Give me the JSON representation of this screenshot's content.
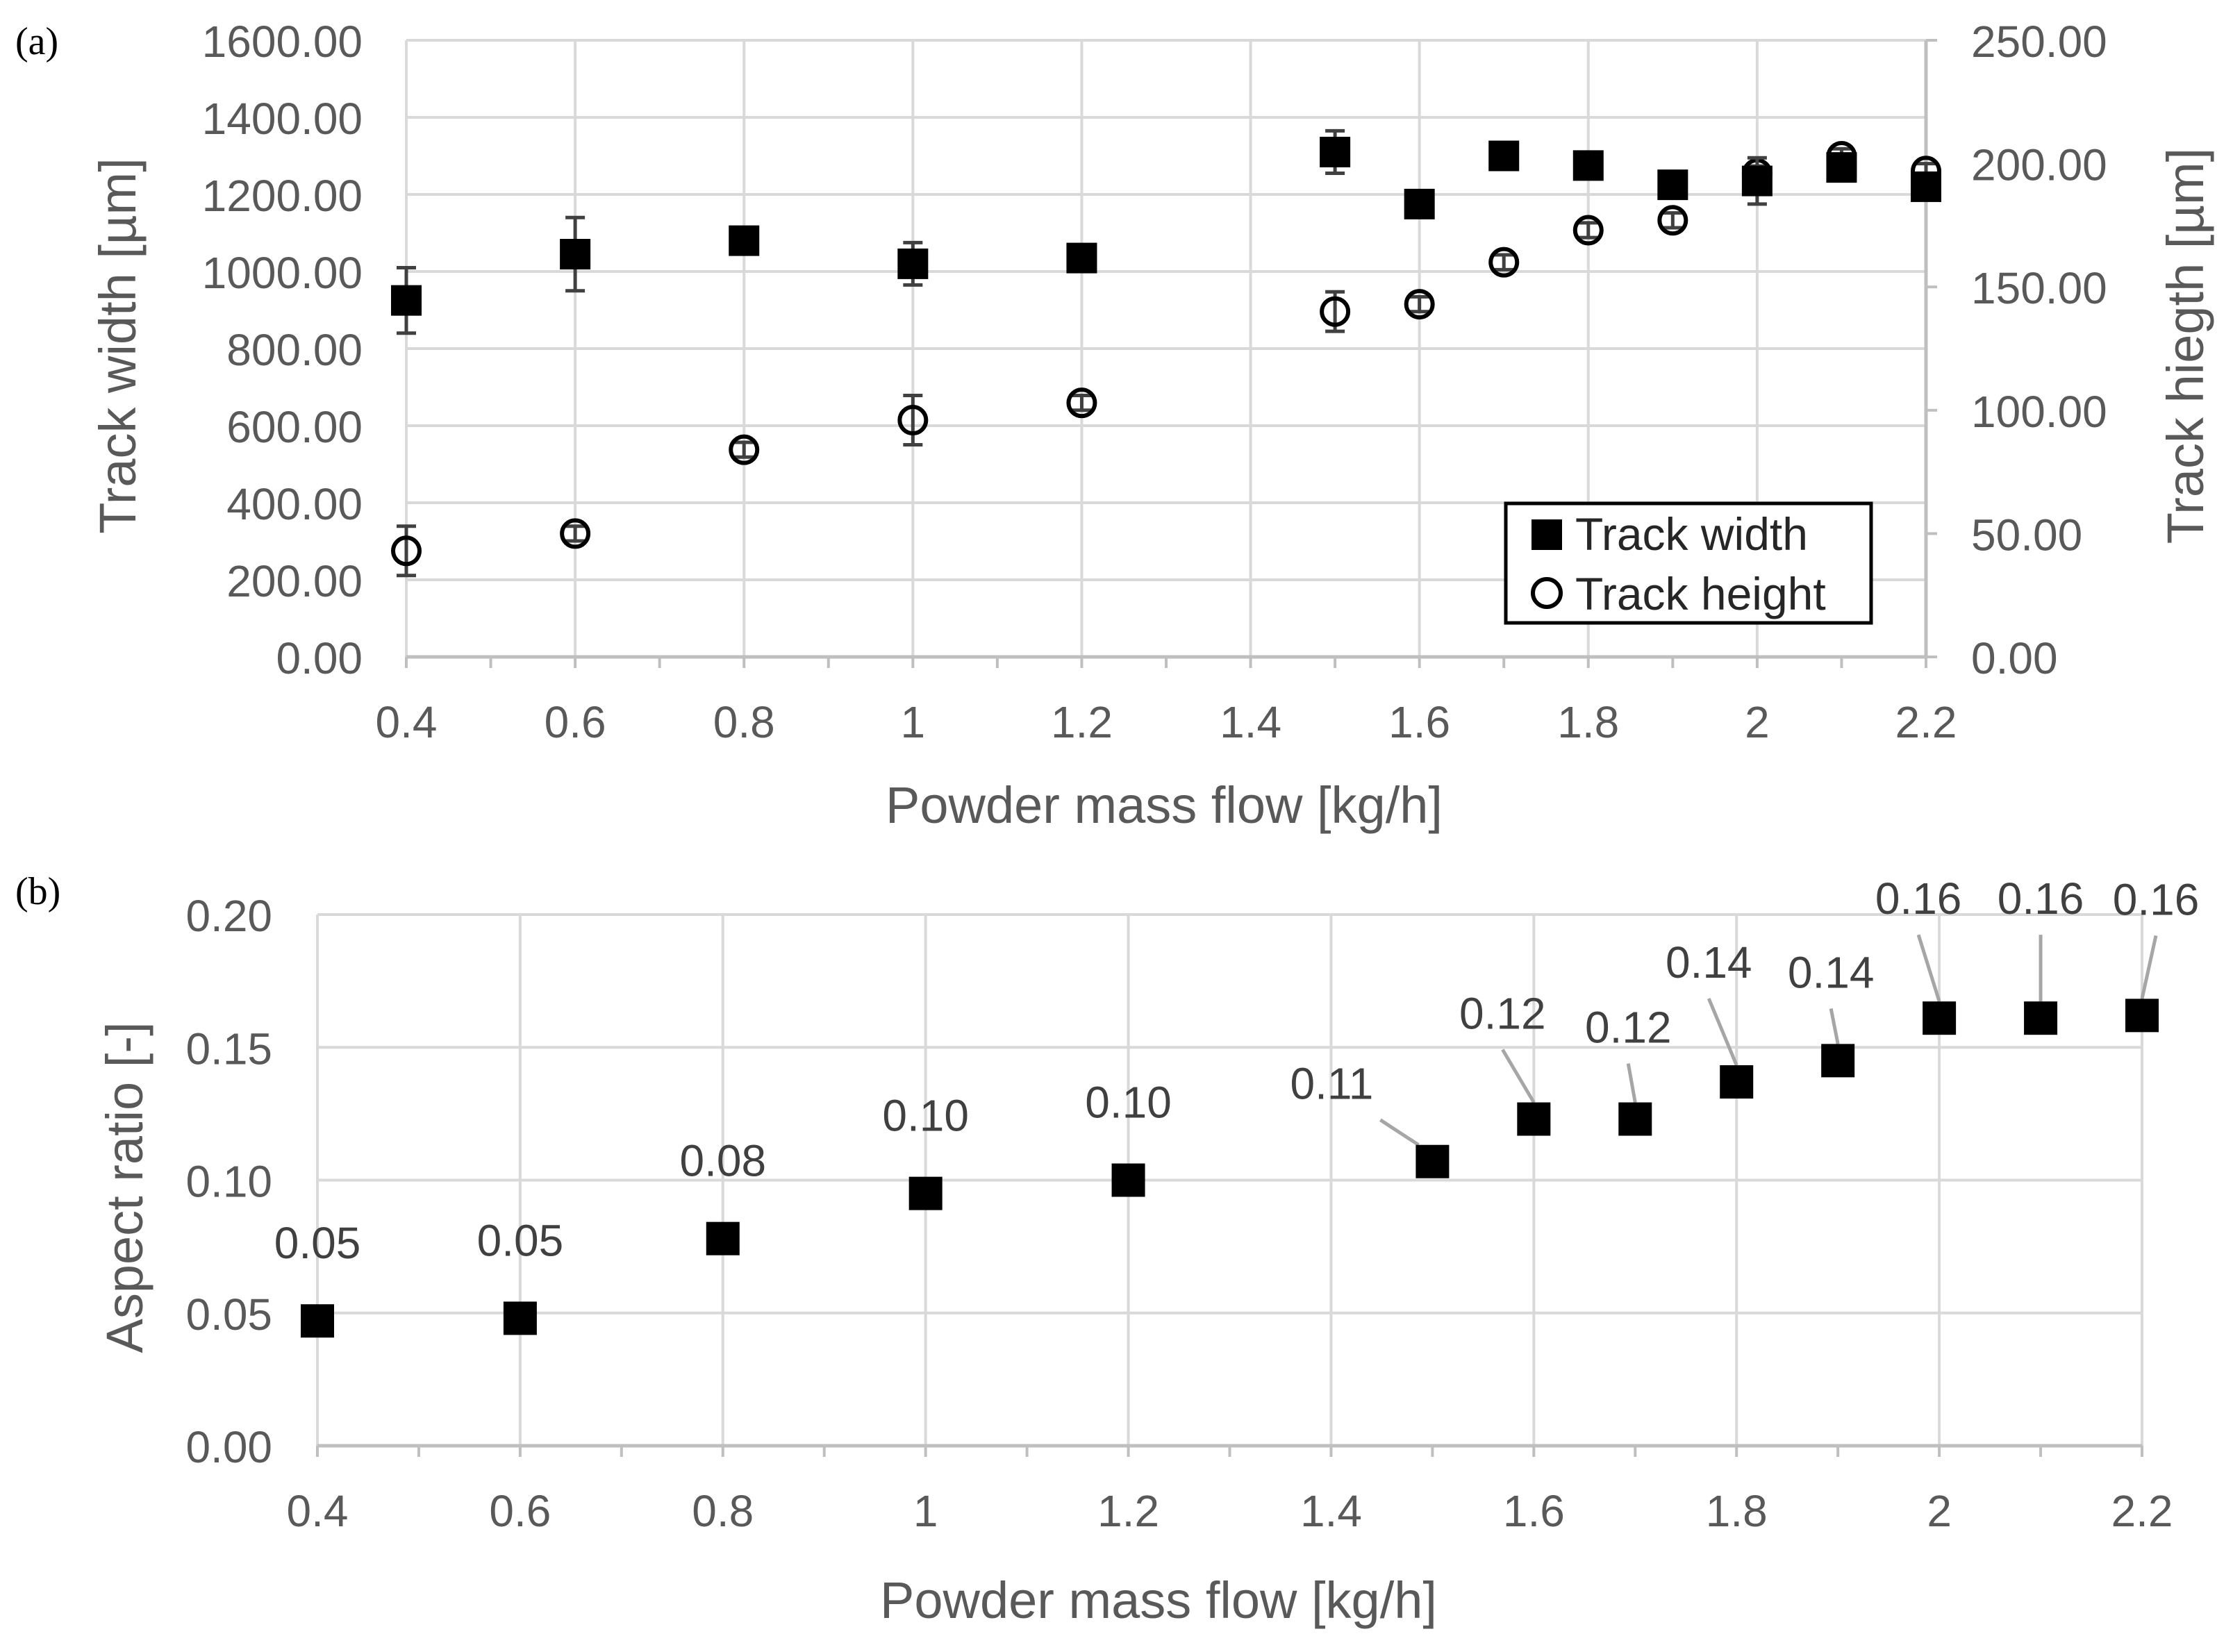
{
  "chart_data": [
    {
      "panel_label": "(a)",
      "type": "scatter",
      "xlabel": "Powder mass flow [kg/h]",
      "ylabel": "Track width [µm]",
      "y2label": "Track hiegth [µm]",
      "xlim": [
        0.4,
        2.2
      ],
      "x_tick_labels": [
        "0.4",
        "0.6",
        "0.8",
        "1",
        "1.2",
        "1.4",
        "1.6",
        "1.8",
        "2",
        "2.2"
      ],
      "ylim": [
        0,
        1600
      ],
      "y_tick_labels": [
        "0.00",
        "200.00",
        "400.00",
        "600.00",
        "800.00",
        "1000.00",
        "1200.00",
        "1400.00",
        "1600.00"
      ],
      "y2lim": [
        0,
        250
      ],
      "y2_tick_labels": [
        "0.00",
        "50.00",
        "100.00",
        "150.00",
        "200.00",
        "250.00"
      ],
      "grid": true,
      "legend_position": "bottom-right",
      "series": [
        {
          "name": "Track width",
          "marker": "filled-square",
          "axis": "left",
          "x": [
            0.4,
            0.6,
            0.8,
            1.0,
            1.2,
            1.5,
            1.6,
            1.7,
            1.8,
            1.9,
            2.0,
            2.1,
            2.2
          ],
          "values": [
            925,
            1045,
            1080,
            1020,
            1035,
            1310,
            1175,
            1300,
            1275,
            1225,
            1235,
            1270,
            1220
          ],
          "errors": [
            85,
            95,
            15,
            55,
            15,
            55,
            15,
            20,
            20,
            20,
            60,
            20,
            30
          ]
        },
        {
          "name": "Track height",
          "marker": "open-circle",
          "axis": "right",
          "x": [
            0.4,
            0.6,
            0.8,
            1.0,
            1.2,
            1.5,
            1.6,
            1.7,
            1.8,
            1.9,
            2.0,
            2.1,
            2.2
          ],
          "values": [
            43,
            50,
            84,
            96,
            103,
            140,
            143,
            160,
            173,
            177,
            196,
            203,
            197
          ],
          "errors": [
            10,
            3,
            3,
            10,
            3,
            8,
            3,
            3,
            3,
            3,
            3,
            3,
            3
          ]
        }
      ]
    },
    {
      "panel_label": "(b)",
      "type": "scatter",
      "xlabel": "Powder mass flow [kg/h]",
      "ylabel": "Aspect ratio [-]",
      "xlim": [
        0.4,
        2.2
      ],
      "x_tick_labels": [
        "0.4",
        "0.6",
        "0.8",
        "1",
        "1.2",
        "1.4",
        "1.6",
        "1.8",
        "2",
        "2.2"
      ],
      "ylim": [
        0,
        0.2
      ],
      "y_tick_labels": [
        "0.00",
        "0.05",
        "0.10",
        "0.15",
        "0.20"
      ],
      "grid": true,
      "series": [
        {
          "name": "Aspect ratio",
          "marker": "filled-square",
          "x": [
            0.4,
            0.6,
            0.8,
            1.0,
            1.2,
            1.5,
            1.6,
            1.7,
            1.8,
            1.9,
            2.0,
            2.1,
            2.2
          ],
          "values": [
            0.047,
            0.048,
            0.078,
            0.095,
            0.1,
            0.107,
            0.123,
            0.123,
            0.137,
            0.145,
            0.161,
            0.161,
            0.162
          ],
          "labels": [
            "0.05",
            "0.05",
            "0.08",
            "0.10",
            "0.10",
            "0.11",
            "0.12",
            "0.12",
            "0.14",
            "0.14",
            "0.16",
            "0.16",
            "0.16"
          ]
        }
      ]
    }
  ]
}
